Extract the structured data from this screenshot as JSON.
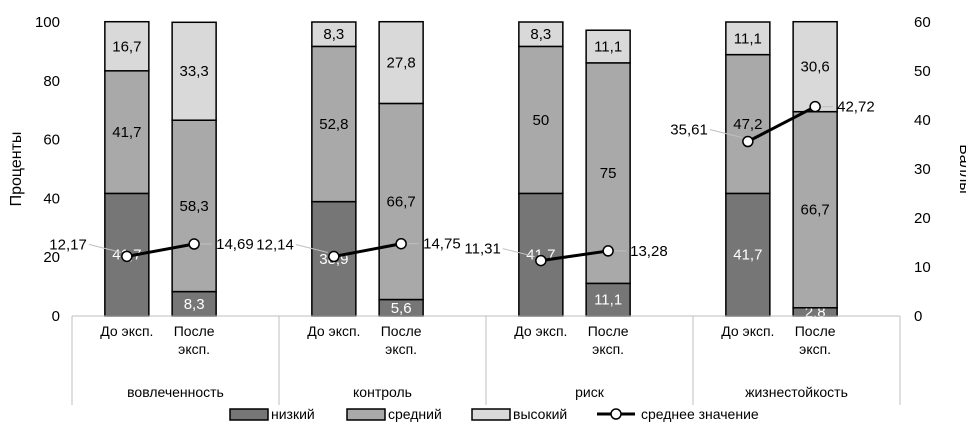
{
  "chart_data": {
    "type": "bar",
    "stacked": true,
    "ylabel": "Проценты",
    "y2label": "Баллы",
    "ylim": [
      0,
      100
    ],
    "y2lim": [
      0,
      60
    ],
    "yticks": [
      "0",
      "20",
      "40",
      "60",
      "80",
      "100"
    ],
    "y2ticks": [
      "0",
      "10",
      "20",
      "30",
      "40",
      "50",
      "60"
    ],
    "groups": [
      {
        "name": "вовлеченность",
        "bars": [
          {
            "label": "До эксп.",
            "values": [
              41.7,
              41.7,
              16.7
            ],
            "labels": [
              "41,7",
              "41,7",
              "16,7"
            ]
          },
          {
            "label": "После эксп.",
            "values": [
              8.3,
              58.3,
              33.3
            ],
            "labels": [
              "8,3",
              "58,3",
              "33,3"
            ]
          }
        ],
        "avg": [
          12.17,
          14.69
        ],
        "avg_labels": [
          "12,17",
          "14,69"
        ]
      },
      {
        "name": "контроль",
        "bars": [
          {
            "label": "До эксп.",
            "values": [
              38.9,
              52.8,
              8.3
            ],
            "labels": [
              "38,9",
              "52,8",
              "8,3"
            ]
          },
          {
            "label": "После эксп.",
            "values": [
              5.6,
              66.7,
              27.8
            ],
            "labels": [
              "5,6",
              "66,7",
              "27,8"
            ]
          }
        ],
        "avg": [
          12.14,
          14.75
        ],
        "avg_labels": [
          "12,14",
          "14,75"
        ]
      },
      {
        "name": "риск",
        "bars": [
          {
            "label": "До эксп.",
            "values": [
              41.7,
              50,
              8.3
            ],
            "labels": [
              "41,7",
              "50",
              "8,3"
            ]
          },
          {
            "label": "После эксп.",
            "values": [
              11.1,
              75,
              11.1
            ],
            "labels": [
              "11,1",
              "75",
              "11,1"
            ]
          }
        ],
        "avg": [
          11.31,
          13.28
        ],
        "avg_labels": [
          "11,31",
          "13,28"
        ]
      },
      {
        "name": "жизнестойкость",
        "bars": [
          {
            "label": "До эксп.",
            "values": [
              41.7,
              47.2,
              11.1
            ],
            "labels": [
              "41,7",
              "47,2",
              "11,1"
            ]
          },
          {
            "label": "После эксп.",
            "values": [
              2.8,
              66.7,
              30.6
            ],
            "labels": [
              "2,8",
              "66,7",
              "30,6"
            ]
          }
        ],
        "avg": [
          35.61,
          42.72
        ],
        "avg_labels": [
          "35,61",
          "42,72"
        ]
      }
    ],
    "series": [
      {
        "name": "низкий",
        "color": "#767676"
      },
      {
        "name": "средний",
        "color": "#a9a9a9"
      },
      {
        "name": "высокий",
        "color": "#d9d9d9"
      }
    ],
    "line_series": {
      "name": "среднее значение",
      "color": "#000000"
    },
    "segment_label_colors": [
      "#ffffff",
      "#000000",
      "#000000"
    ],
    "legend_position": "bottom"
  }
}
